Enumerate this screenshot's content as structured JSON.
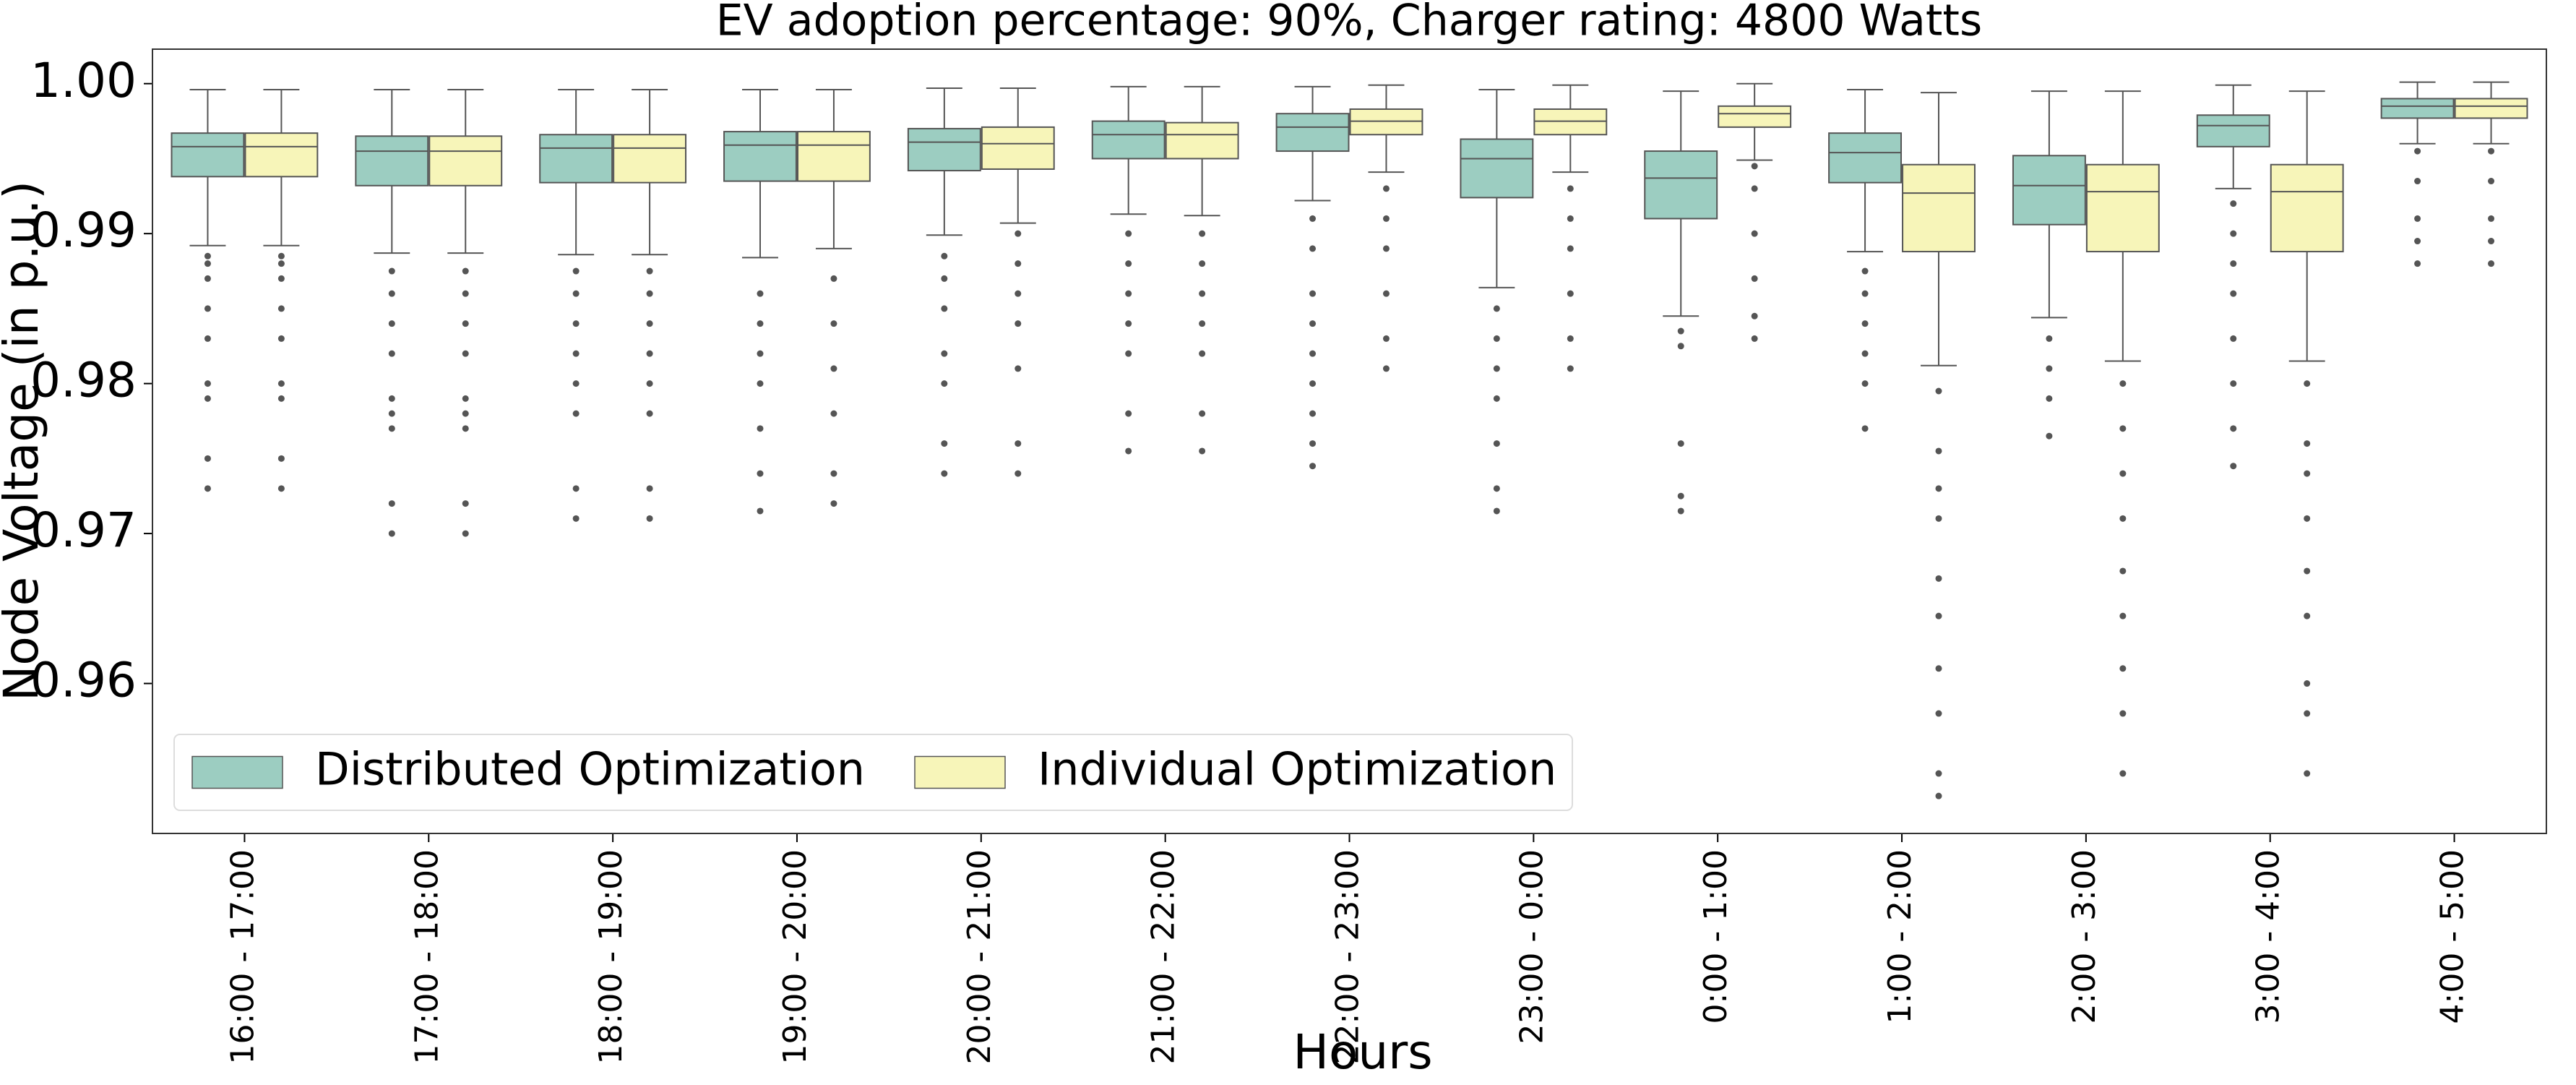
{
  "chart_data": {
    "type": "box",
    "title": "EV adoption percentage: 90%, Charger rating: 4800 Watts",
    "x_label": "Hours",
    "y_label": "Node Voltage (in p.u.)",
    "categories": [
      "16:00 - 17:00",
      "17:00 - 18:00",
      "18:00 - 19:00",
      "19:00 - 20:00",
      "20:00 - 21:00",
      "21:00 - 22:00",
      "22:00 - 23:00",
      "23:00 - 0:00",
      "0:00 - 1:00",
      "1:00 - 2:00",
      "2:00 - 3:00",
      "3:00 - 4:00",
      "4:00 - 5:00"
    ],
    "ylim": [
      0.95,
      1.0023
    ],
    "yticks": [
      0.96,
      0.97,
      0.98,
      0.99,
      {
        "value": 1,
        "label": "1.00"
      }
    ],
    "legend": "lower left",
    "series": [
      {
        "name": "Distributed Optimization",
        "color": "#9ccdc1",
        "boxes": [
          {
            "whislo": 0.9892,
            "q1": 0.9938,
            "med": 0.9958,
            "q3": 0.9967,
            "whishi": 0.9996,
            "fliers": [
              0.9885,
              0.988,
              0.987,
              0.985,
              0.983,
              0.98,
              0.979,
              0.975,
              0.973
            ]
          },
          {
            "whislo": 0.9887,
            "q1": 0.9932,
            "med": 0.9955,
            "q3": 0.9965,
            "whishi": 0.9996,
            "fliers": [
              0.9875,
              0.986,
              0.984,
              0.982,
              0.979,
              0.978,
              0.977,
              0.972,
              0.97
            ]
          },
          {
            "whislo": 0.9886,
            "q1": 0.9934,
            "med": 0.9957,
            "q3": 0.9966,
            "whishi": 0.9996,
            "fliers": [
              0.9875,
              0.986,
              0.984,
              0.982,
              0.98,
              0.978,
              0.973,
              0.971
            ]
          },
          {
            "whislo": 0.9884,
            "q1": 0.9935,
            "med": 0.9959,
            "q3": 0.9968,
            "whishi": 0.9996,
            "fliers": [
              0.986,
              0.984,
              0.982,
              0.98,
              0.977,
              0.974,
              0.9715
            ]
          },
          {
            "whislo": 0.9899,
            "q1": 0.9942,
            "med": 0.9961,
            "q3": 0.997,
            "whishi": 0.9997,
            "fliers": [
              0.9885,
              0.987,
              0.985,
              0.982,
              0.98,
              0.976,
              0.974
            ]
          },
          {
            "whislo": 0.9913,
            "q1": 0.995,
            "med": 0.9966,
            "q3": 0.9975,
            "whishi": 0.9998,
            "fliers": [
              0.99,
              0.988,
              0.986,
              0.984,
              0.982,
              0.978,
              0.9755
            ]
          },
          {
            "whislo": 0.9922,
            "q1": 0.9955,
            "med": 0.9971,
            "q3": 0.998,
            "whishi": 0.9998,
            "fliers": [
              0.991,
              0.989,
              0.986,
              0.984,
              0.982,
              0.98,
              0.978,
              0.976,
              0.9745
            ]
          },
          {
            "whislo": 0.9864,
            "q1": 0.9924,
            "med": 0.995,
            "q3": 0.9963,
            "whishi": 0.9996,
            "fliers": [
              0.985,
              0.983,
              0.981,
              0.979,
              0.976,
              0.973,
              0.9715
            ]
          },
          {
            "whislo": 0.9845,
            "q1": 0.991,
            "med": 0.9937,
            "q3": 0.9955,
            "whishi": 0.9995,
            "fliers": [
              0.9835,
              0.9825,
              0.976,
              0.9725,
              0.9715
            ]
          },
          {
            "whislo": 0.9888,
            "q1": 0.9934,
            "med": 0.9954,
            "q3": 0.9967,
            "whishi": 0.9996,
            "fliers": [
              0.9875,
              0.986,
              0.984,
              0.982,
              0.98,
              0.977
            ]
          },
          {
            "whislo": 0.9844,
            "q1": 0.9906,
            "med": 0.9932,
            "q3": 0.9952,
            "whishi": 0.9995,
            "fliers": [
              0.983,
              0.981,
              0.979,
              0.9765
            ]
          },
          {
            "whislo": 0.993,
            "q1": 0.9958,
            "med": 0.9972,
            "q3": 0.9979,
            "whishi": 0.9999,
            "fliers": [
              0.992,
              0.99,
              0.988,
              0.986,
              0.983,
              0.98,
              0.977,
              0.9745
            ]
          },
          {
            "whislo": 0.996,
            "q1": 0.9977,
            "med": 0.9985,
            "q3": 0.999,
            "whishi": 1.0001,
            "fliers": [
              0.9955,
              0.9935,
              0.991,
              0.9895,
              0.988
            ]
          }
        ]
      },
      {
        "name": "Individual Optimization",
        "color": "#f7f5b9",
        "boxes": [
          {
            "whislo": 0.9892,
            "q1": 0.9938,
            "med": 0.9958,
            "q3": 0.9967,
            "whishi": 0.9996,
            "fliers": [
              0.9885,
              0.988,
              0.987,
              0.985,
              0.983,
              0.98,
              0.979,
              0.975,
              0.973
            ]
          },
          {
            "whislo": 0.9887,
            "q1": 0.9932,
            "med": 0.9955,
            "q3": 0.9965,
            "whishi": 0.9996,
            "fliers": [
              0.9875,
              0.986,
              0.984,
              0.982,
              0.979,
              0.978,
              0.977,
              0.972,
              0.97
            ]
          },
          {
            "whislo": 0.9886,
            "q1": 0.9934,
            "med": 0.9957,
            "q3": 0.9966,
            "whishi": 0.9996,
            "fliers": [
              0.9875,
              0.986,
              0.984,
              0.982,
              0.98,
              0.978,
              0.973,
              0.971
            ]
          },
          {
            "whislo": 0.989,
            "q1": 0.9935,
            "med": 0.9959,
            "q3": 0.9968,
            "whishi": 0.9996,
            "fliers": [
              0.987,
              0.984,
              0.981,
              0.978,
              0.974,
              0.972
            ]
          },
          {
            "whislo": 0.9907,
            "q1": 0.9943,
            "med": 0.996,
            "q3": 0.9971,
            "whishi": 0.9997,
            "fliers": [
              0.99,
              0.988,
              0.986,
              0.984,
              0.981,
              0.976,
              0.974
            ]
          },
          {
            "whislo": 0.9912,
            "q1": 0.995,
            "med": 0.9966,
            "q3": 0.9974,
            "whishi": 0.9998,
            "fliers": [
              0.99,
              0.988,
              0.986,
              0.984,
              0.982,
              0.978,
              0.9755
            ]
          },
          {
            "whislo": 0.9941,
            "q1": 0.9966,
            "med": 0.9975,
            "q3": 0.9983,
            "whishi": 0.9999,
            "fliers": [
              0.993,
              0.991,
              0.989,
              0.986,
              0.983,
              0.981
            ]
          },
          {
            "whislo": 0.9941,
            "q1": 0.9966,
            "med": 0.9975,
            "q3": 0.9983,
            "whishi": 0.9999,
            "fliers": [
              0.993,
              0.991,
              0.989,
              0.986,
              0.983,
              0.981
            ]
          },
          {
            "whislo": 0.9949,
            "q1": 0.9971,
            "med": 0.998,
            "q3": 0.9985,
            "whishi": 1.0,
            "fliers": [
              0.9945,
              0.993,
              0.99,
              0.987,
              0.9845,
              0.983
            ]
          },
          {
            "whislo": 0.9812,
            "q1": 0.9888,
            "med": 0.9927,
            "q3": 0.9946,
            "whishi": 0.9994,
            "fliers": [
              0.9795,
              0.9755,
              0.973,
              0.971,
              0.967,
              0.9645,
              0.961,
              0.958,
              0.954,
              0.9525
            ]
          },
          {
            "whislo": 0.9815,
            "q1": 0.9888,
            "med": 0.9928,
            "q3": 0.9946,
            "whishi": 0.9995,
            "fliers": [
              0.98,
              0.977,
              0.974,
              0.971,
              0.9675,
              0.9645,
              0.961,
              0.958,
              0.954
            ]
          },
          {
            "whislo": 0.9815,
            "q1": 0.9888,
            "med": 0.9928,
            "q3": 0.9946,
            "whishi": 0.9995,
            "fliers": [
              0.98,
              0.976,
              0.974,
              0.971,
              0.9675,
              0.9645,
              0.96,
              0.958,
              0.954
            ]
          },
          {
            "whislo": 0.996,
            "q1": 0.9977,
            "med": 0.9985,
            "q3": 0.999,
            "whishi": 1.0001,
            "fliers": [
              0.9955,
              0.9935,
              0.991,
              0.9895,
              0.988
            ]
          }
        ]
      }
    ]
  }
}
